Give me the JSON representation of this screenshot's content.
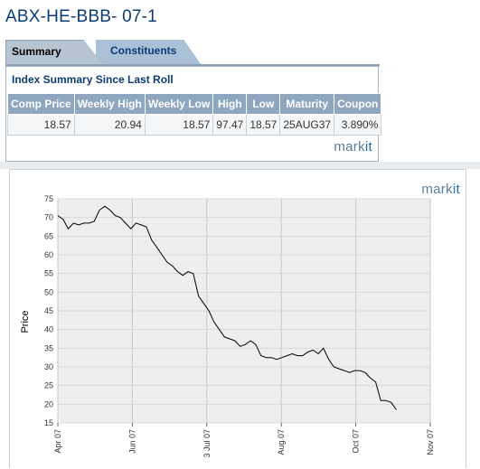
{
  "page": {
    "title": "ABX-HE-BBB- 07-1"
  },
  "tabs": [
    {
      "label": "Summary",
      "active": true
    },
    {
      "label": "Constituents",
      "active": false
    }
  ],
  "summary": {
    "heading": "Index Summary Since Last Roll",
    "columns": [
      "Comp Price",
      "Weekly High",
      "Weekly Low",
      "High",
      "Low",
      "Maturity",
      "Coupon"
    ],
    "row": [
      "18.57",
      "20.94",
      "18.57",
      "97.47",
      "18.57",
      "25AUG37",
      "3.890%"
    ]
  },
  "logo": {
    "prefix": "mark",
    "suffix": "it"
  },
  "colors": {
    "title": "#0d3c73",
    "header_bg": "#8ea6bf",
    "plot_bg": "#eeeeee",
    "line": "#000000"
  },
  "chart_data": {
    "type": "line",
    "ylabel": "Price",
    "xlabel": "",
    "ylim": [
      15,
      75
    ],
    "yticks": [
      "15",
      "20",
      "25",
      "30",
      "35",
      "40",
      "45",
      "50",
      "55",
      "60",
      "65",
      "70",
      "75"
    ],
    "xticks": [
      "Apr 07",
      "Jun 07",
      "3 Jul 07",
      "Aug 07",
      "Oct 07",
      "Nov 07"
    ],
    "grid": true,
    "series": [
      {
        "name": "",
        "values": [
          70.5,
          69.5,
          67,
          68.5,
          68,
          68.5,
          68.5,
          69,
          72,
          73,
          72,
          70.5,
          70,
          68.5,
          67,
          68.5,
          68,
          67.5,
          64,
          62,
          60,
          58,
          57,
          55.5,
          54.5,
          55.5,
          55,
          49,
          47,
          45,
          42,
          40,
          38,
          37.5,
          37,
          35.5,
          36,
          37,
          36,
          33,
          32.5,
          32.5,
          32,
          32.5,
          33,
          33.5,
          33,
          33,
          34,
          34.5,
          33.5,
          35,
          32,
          30,
          29.5,
          29,
          28.5,
          29,
          29,
          28.5,
          27,
          26,
          21,
          21,
          20.5,
          18.5
        ]
      }
    ]
  }
}
